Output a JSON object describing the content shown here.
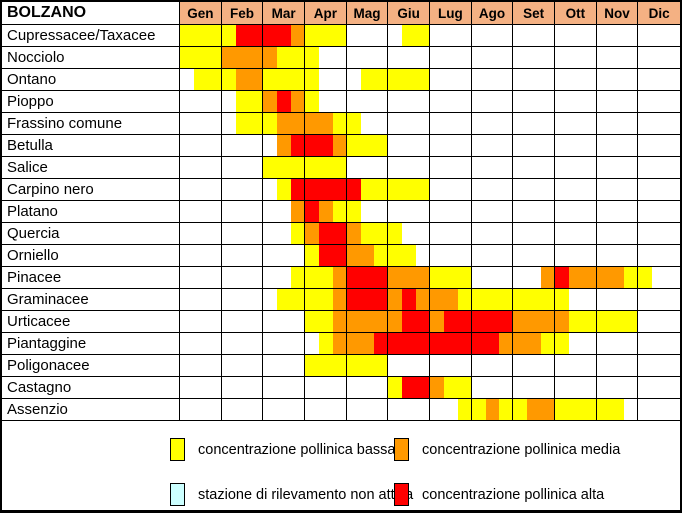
{
  "chart_data": {
    "type": "heatmap",
    "title": "BOLZANO",
    "months": [
      "Gen",
      "Feb",
      "Mar",
      "Apr",
      "Mag",
      "Giu",
      "Lug",
      "Ago",
      "Set",
      "Ott",
      "Nov",
      "Dic"
    ],
    "subcells_per_month": 3,
    "level_codes": {
      "y": "concentrazione pollinica bassa",
      "o": "concentrazione pollinica media",
      "r": "concentrazione pollinica alta",
      "n": "stazione di rilevamento non attiva",
      "-": "nessuna concentrazione"
    },
    "rows": [
      {
        "label": "Cupressacee/Taxacee",
        "cells": "yyyyrrrroyyy----yy------------------"
      },
      {
        "label": "Nocciolo",
        "cells": "yyyooooyyy--------------------------"
      },
      {
        "label": "Ontano",
        "cells": "-yyyooyyyy---yyyyy------------------"
      },
      {
        "label": "Pioppo",
        "cells": "----yyoroy--------------------------"
      },
      {
        "label": "Frassino comune",
        "cells": "----yyyooooyy-----------------------"
      },
      {
        "label": "Betulla",
        "cells": "-------orrroyyy---------------------"
      },
      {
        "label": "Salice",
        "cells": "------yyyyyy------------------------"
      },
      {
        "label": "Carpino nero",
        "cells": "-------yrrrrryyyyy------------------"
      },
      {
        "label": "Platano",
        "cells": "--------oroyy-----------------------"
      },
      {
        "label": "Quercia",
        "cells": "--------yorroyyy--------------------"
      },
      {
        "label": "Orniello",
        "cells": "---------yrrooyyy-------------------"
      },
      {
        "label": "Pinacee",
        "cells": "--------yyyorrroooyyy-----orooooyy--"
      },
      {
        "label": "Graminacee",
        "cells": "-------yyyyorrroroooyyyyyyyy--------"
      },
      {
        "label": "Urticacee",
        "cells": "---------yyooooorrorrrrrooooyyyyy---"
      },
      {
        "label": "Piantaggine",
        "cells": "----------yooorrrrrrrrroooyy--------"
      },
      {
        "label": "Poligonacee",
        "cells": "---------yyyyyy---------------------"
      },
      {
        "label": "Castagno",
        "cells": "---------------yrroyy---------------"
      },
      {
        "label": "Assenzio",
        "cells": "--------------------yyoyyooyyyyy----"
      }
    ]
  },
  "colors": {
    "y": "#FFFF00",
    "o": "#FF9900",
    "r": "#FF0000",
    "n": "#CCFFFF",
    "header_bg": "#F4B183",
    "grid": "#000000",
    "empty": "#FFFFFF"
  },
  "legend": {
    "items": [
      {
        "code": "y",
        "label": "concentrazione pollinica bassa"
      },
      {
        "code": "o",
        "label": "concentrazione pollinica media"
      },
      {
        "code": "n",
        "label": "stazione di rilevamento non attiva"
      },
      {
        "code": "r",
        "label": "concentrazione pollinica alta"
      }
    ]
  }
}
